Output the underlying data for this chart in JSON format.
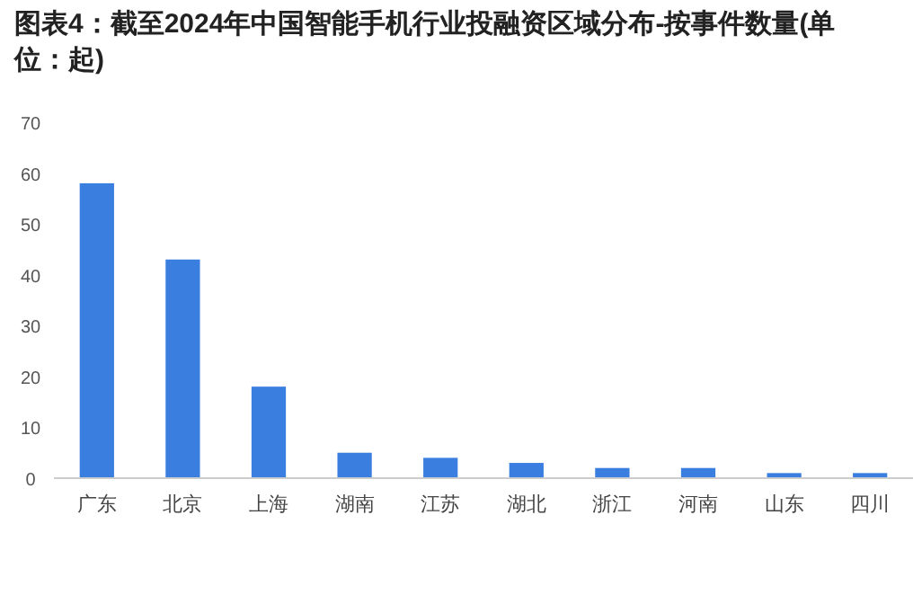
{
  "chart_data": {
    "type": "bar",
    "title": "图表4：截至2024年中国智能手机行业投融资区域分布-按事件数量(单位：起)",
    "categories": [
      "广东",
      "北京",
      "上海",
      "湖南",
      "江苏",
      "湖北",
      "浙江",
      "河南",
      "山东",
      "四川"
    ],
    "values": [
      58,
      43,
      18,
      5,
      4,
      3,
      2,
      2,
      1,
      1
    ],
    "color": "#3a7fe0",
    "ylim": [
      0,
      70
    ],
    "yticks": [
      0,
      10,
      20,
      30,
      40,
      50,
      60,
      70
    ]
  }
}
